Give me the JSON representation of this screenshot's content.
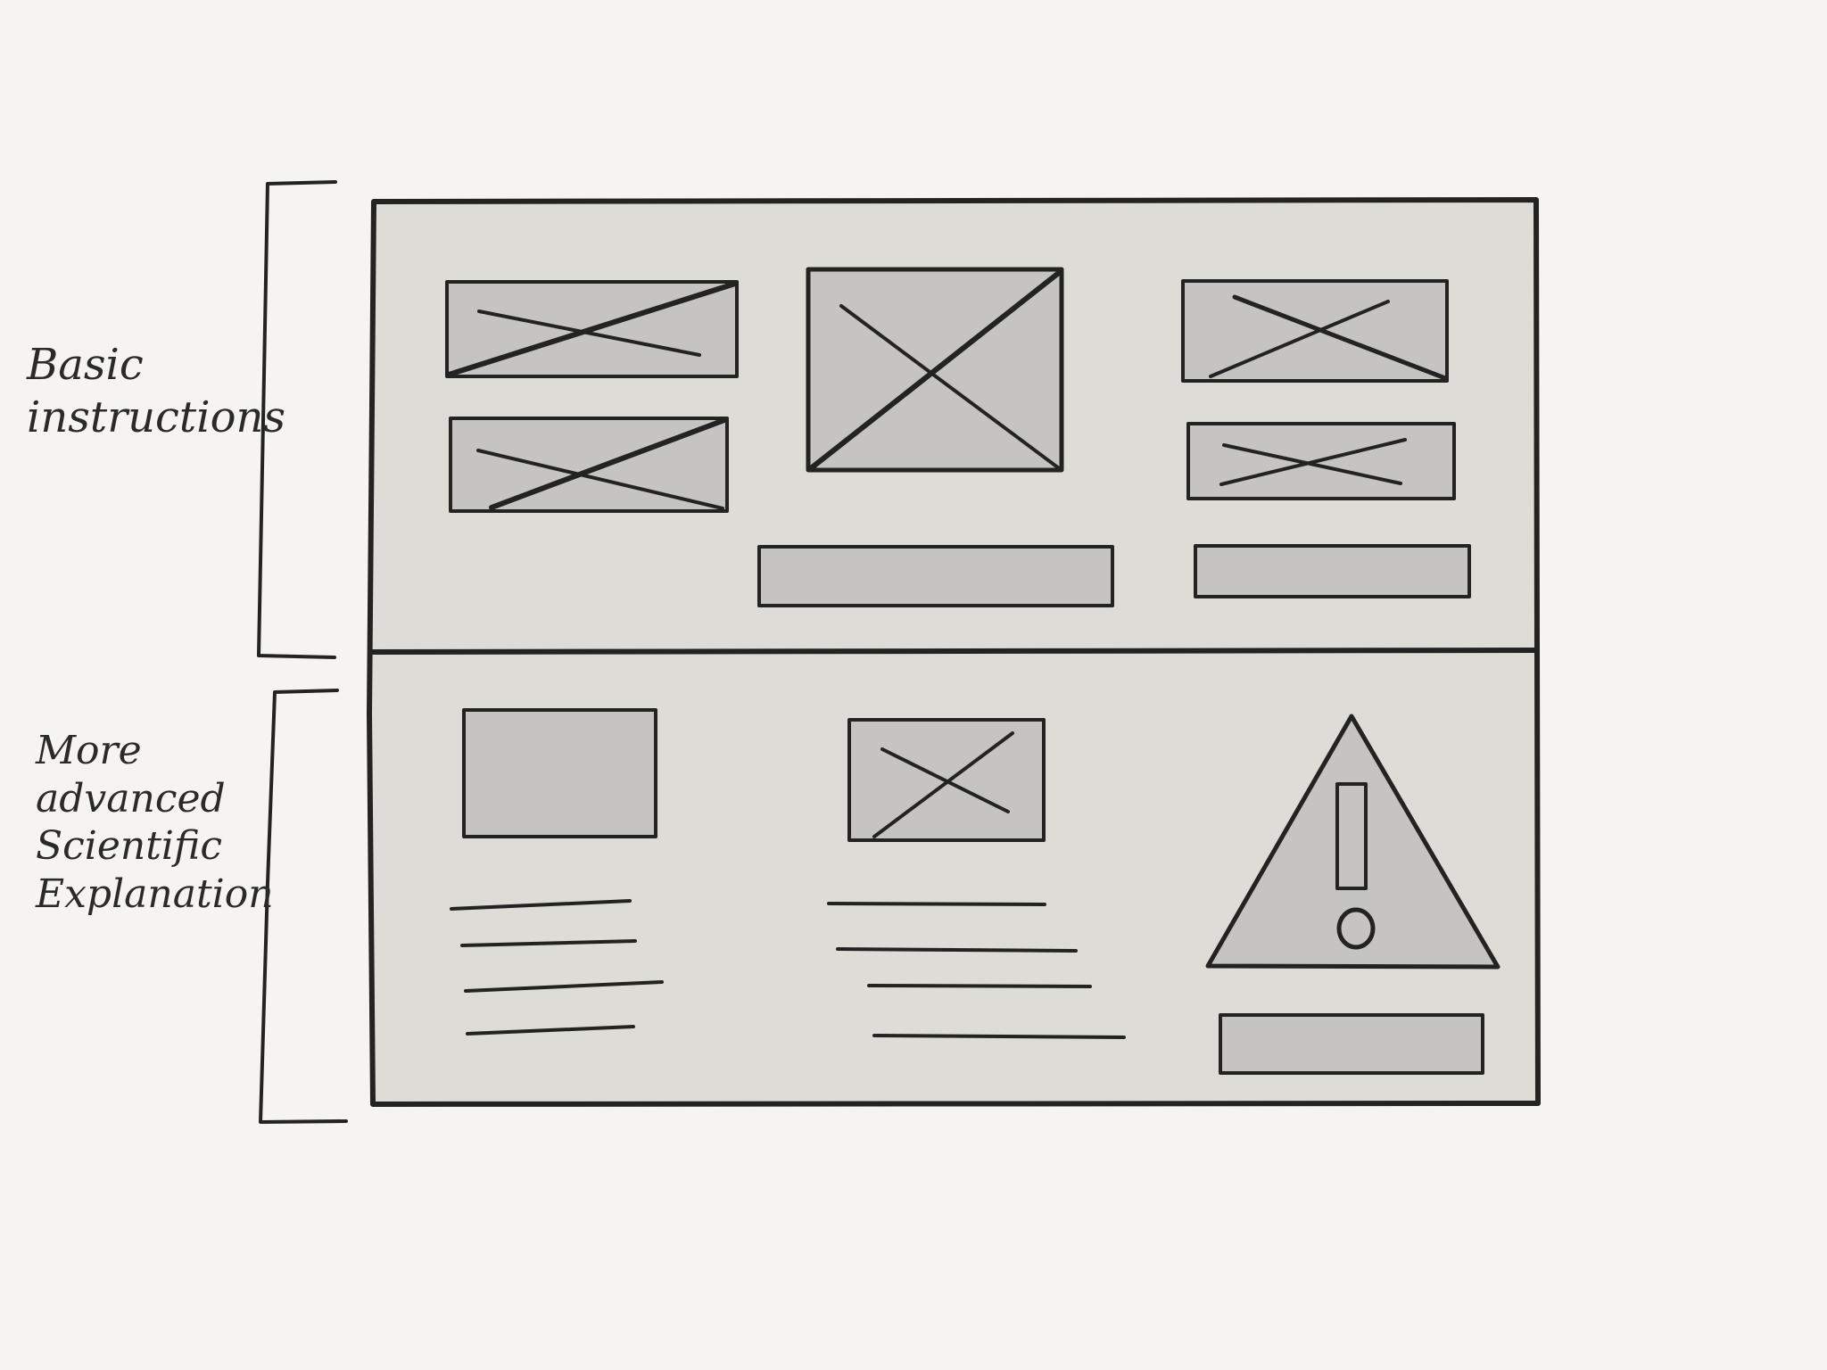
{
  "annotations": {
    "basic": {
      "line1": "Basic",
      "line2": "instructions"
    },
    "advanced": {
      "line1": "More",
      "line2": "advanced",
      "line3": "Scientific",
      "line4": "Explanation"
    }
  },
  "colors": {
    "background": "#f5f4f0",
    "panel": "#dddcd7",
    "placeholder": "#c5c4c0",
    "ink": "#232321"
  },
  "icons": {
    "warning": "warning-icon",
    "image_placeholder": "image-placeholder-icon"
  }
}
